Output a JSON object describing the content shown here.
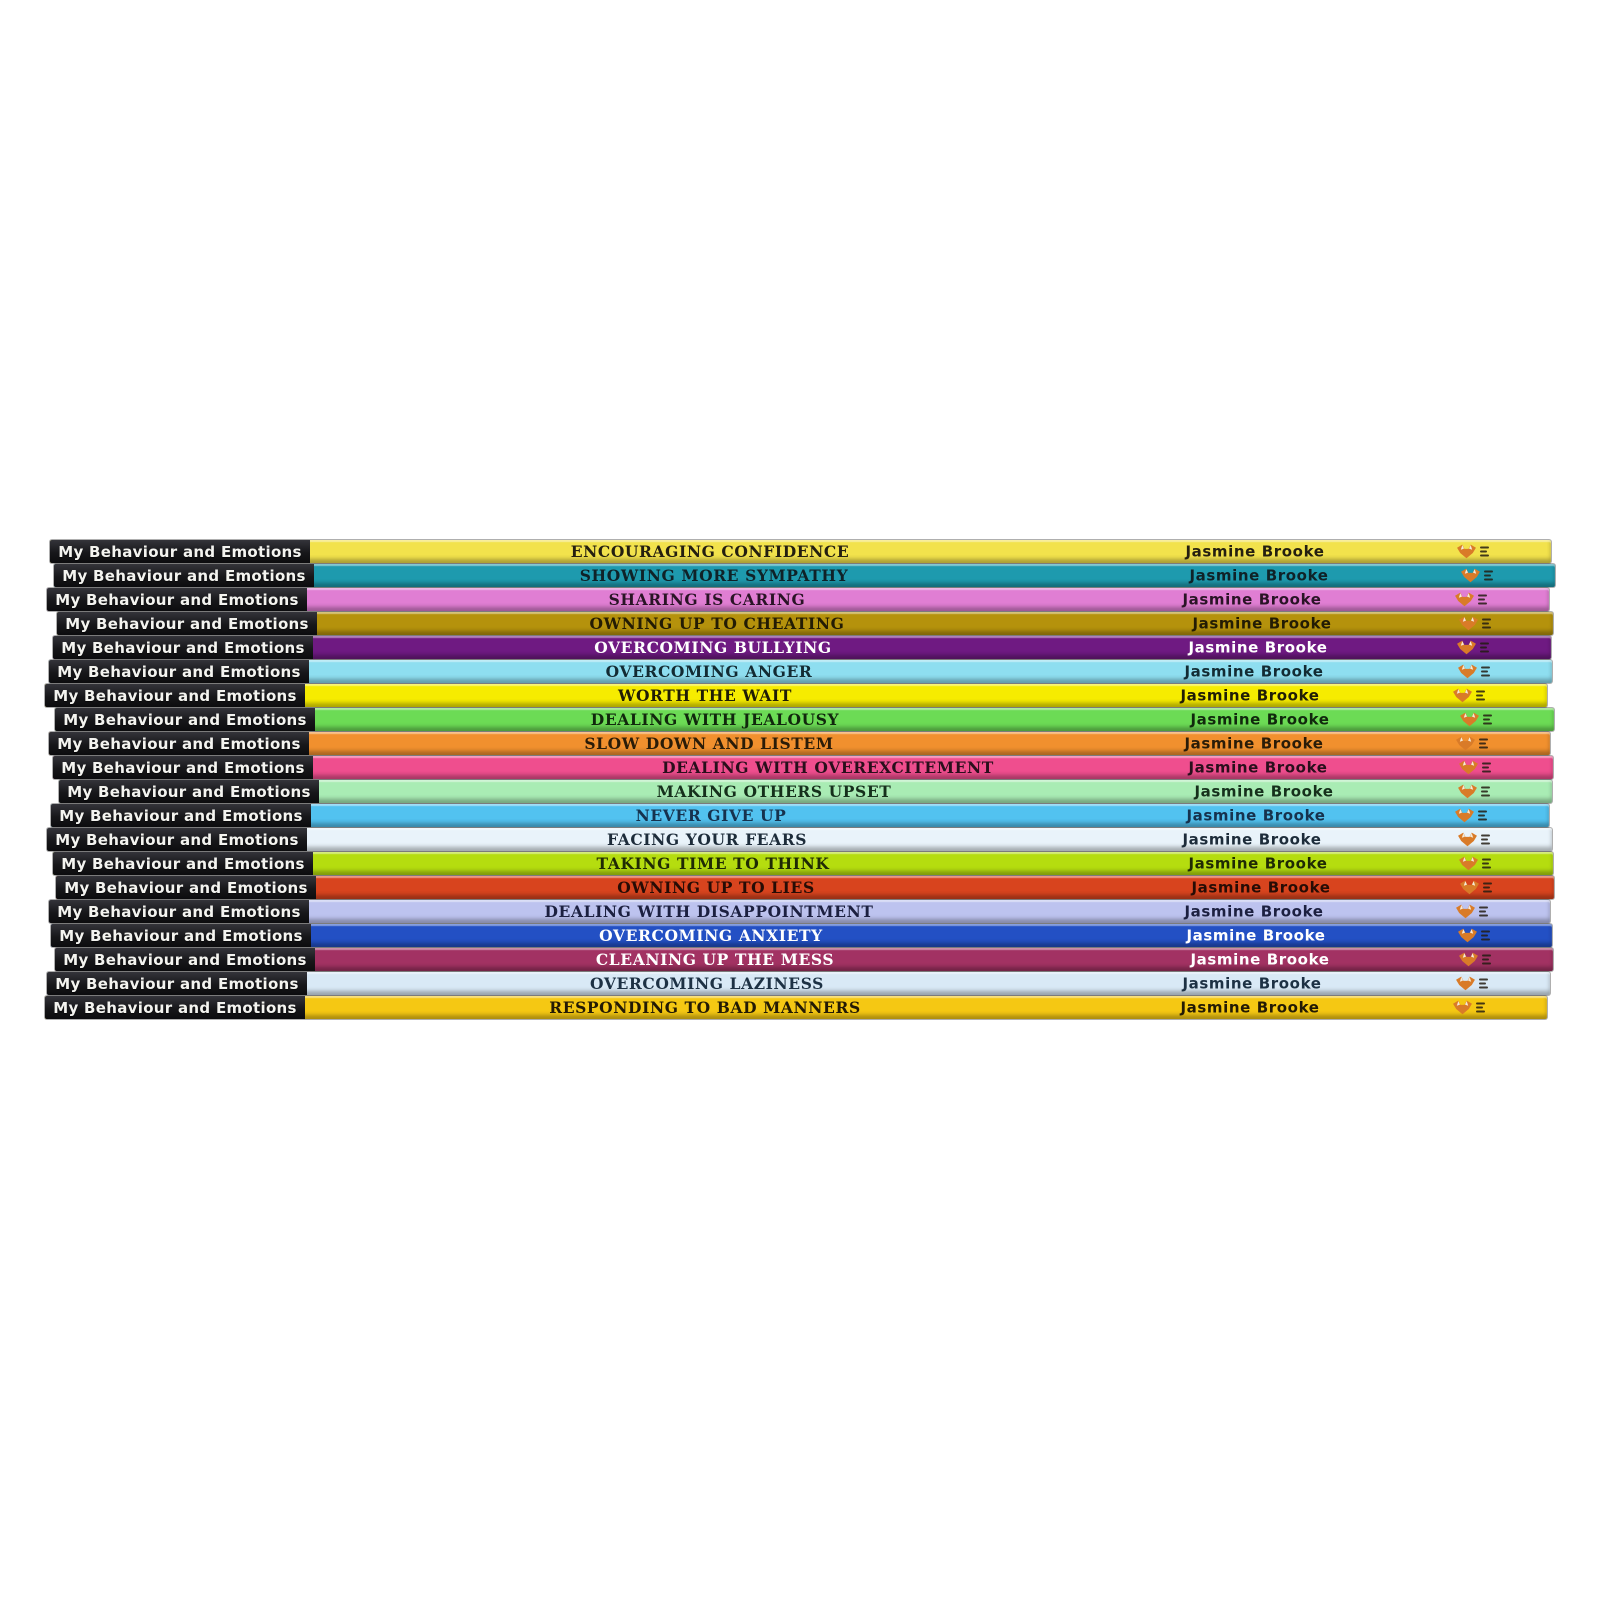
{
  "page": {
    "background_color": "#ffffff"
  },
  "series": {
    "spine_label": "My Behaviour and Emotions",
    "author": "Jasmine Brooke",
    "publisher_logo_icon": "fox-logo-icon",
    "logo_color": "#d97b28"
  },
  "books": [
    {
      "title": "ENCOURAGING CONFIDENCE",
      "spine_color": "#f2e24c",
      "text_color": "#241f10"
    },
    {
      "title": "SHOWING MORE SYMPATHY",
      "spine_color": "#1e9aae",
      "text_color": "#0f2228"
    },
    {
      "title": "SHARING IS CARING",
      "spine_color": "#e07ed3",
      "text_color": "#2a1426"
    },
    {
      "title": "OWNING UP TO CHEATING",
      "spine_color": "#b5920c",
      "text_color": "#231c04"
    },
    {
      "title": "OVERCOMING BULLYING",
      "spine_color": "#6f1a82",
      "text_color": "#ffffff"
    },
    {
      "title": "OVERCOMING ANGER",
      "spine_color": "#8edef0",
      "text_color": "#132b33"
    },
    {
      "title": "WORTH THE WAIT",
      "spine_color": "#f6ec00",
      "text_color": "#201d05"
    },
    {
      "title": "DEALING WITH JEALOUSY",
      "spine_color": "#6cdb55",
      "text_color": "#11280d"
    },
    {
      "title": "SLOW DOWN AND LISTEM",
      "spine_color": "#f1902e",
      "text_color": "#2a1c08"
    },
    {
      "title": "DEALING WITH OVEREXCITEMENT",
      "spine_color": "#ef4e8e",
      "text_color": "#2a0f1c"
    },
    {
      "title": "MAKING OTHERS UPSET",
      "spine_color": "#a9ecb4",
      "text_color": "#16301c"
    },
    {
      "title": "NEVER GIVE UP",
      "spine_color": "#52c2f0",
      "text_color": "#16324e"
    },
    {
      "title": "FACING YOUR FEARS",
      "spine_color": "#e9f3fa",
      "text_color": "#1d2c3a"
    },
    {
      "title": "TAKING TIME TO THINK",
      "spine_color": "#b5dd0f",
      "text_color": "#1f2a04"
    },
    {
      "title": "OWNING UP TO LIES",
      "spine_color": "#d8441e",
      "text_color": "#270c05"
    },
    {
      "title": "DEALING WITH DISAPPOINTMENT",
      "spine_color": "#bdc3ef",
      "text_color": "#1c2040"
    },
    {
      "title": "OVERCOMING ANXIETY",
      "spine_color": "#2350c4",
      "text_color": "#ffffff"
    },
    {
      "title": "CLEANING UP THE MESS",
      "spine_color": "#a23263",
      "text_color": "#ffffff"
    },
    {
      "title": "OVERCOMING LAZINESS",
      "spine_color": "#d9e9f6",
      "text_color": "#1d3144"
    },
    {
      "title": "RESPONDING TO BAD MANNERS",
      "spine_color": "#f5c813",
      "text_color": "#231a04"
    }
  ]
}
